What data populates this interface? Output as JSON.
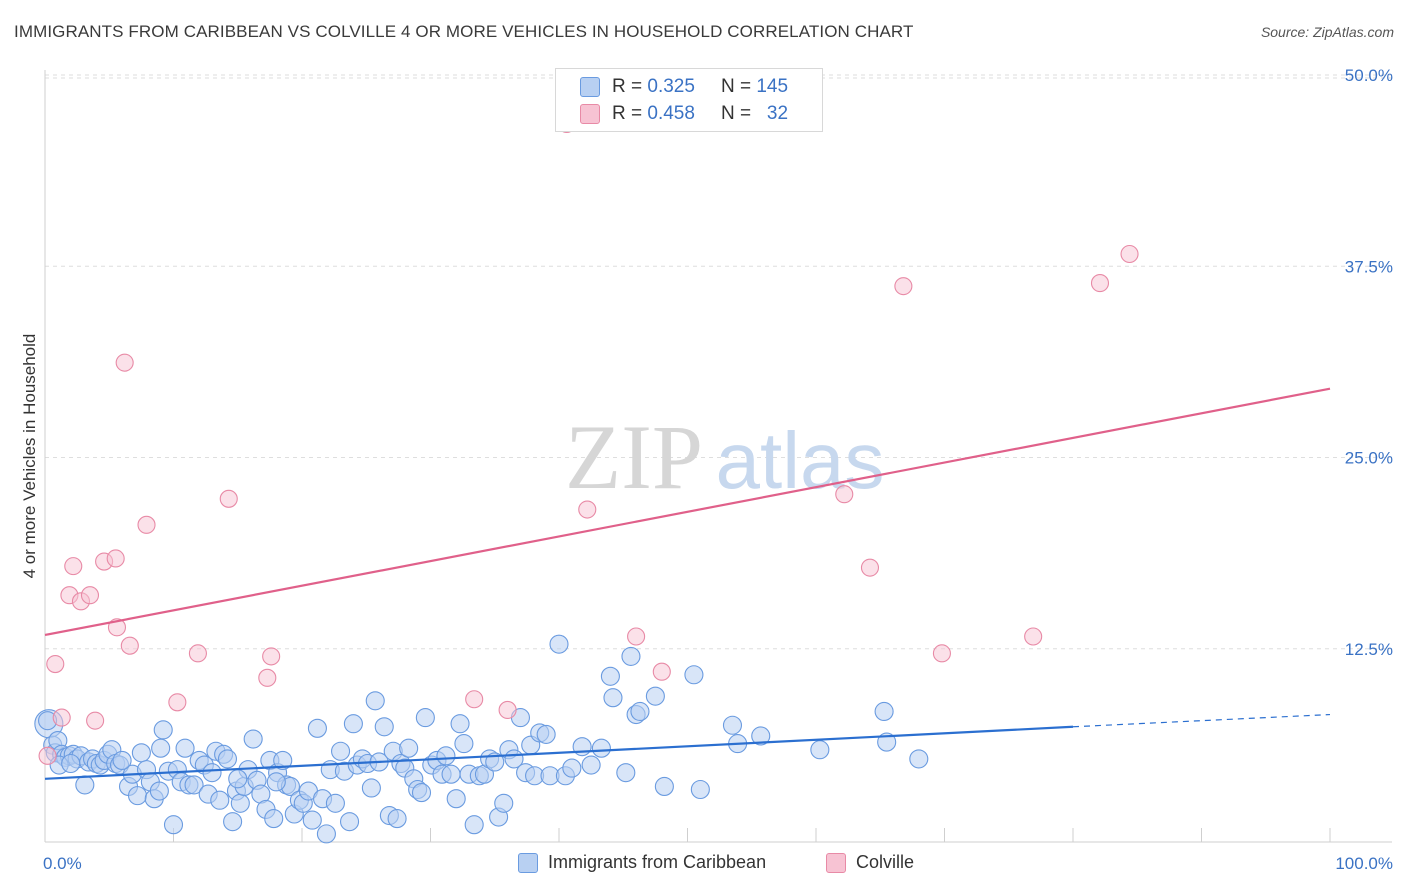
{
  "colors": {
    "blue": "#6a9be0",
    "blue_fill": "#b8d0f2",
    "blue_line": "#2b6fd0",
    "pink": "#e88aa6",
    "pink_fill": "#f7c3d3",
    "pink_line": "#e0608a",
    "tick_text": "#3a72c4"
  },
  "chart_data": {
    "type": "scatter",
    "title": "IMMIGRANTS FROM CARIBBEAN VS COLVILLE 4 OR MORE VEHICLES IN HOUSEHOLD CORRELATION CHART",
    "source": "Source: ZipAtlas.com",
    "ylabel": "4 or more Vehicles in Household",
    "xlabel": "",
    "xlim": [
      0,
      100
    ],
    "ylim": [
      0,
      52
    ],
    "x_tick_labels": [
      "0.0%",
      "100.0%"
    ],
    "y_ticks": [
      {
        "value": 12.5,
        "label": "12.5%"
      },
      {
        "value": 25.0,
        "label": "25.0%"
      },
      {
        "value": 37.5,
        "label": "37.5%"
      },
      {
        "value": 50.0,
        "label": "50.0%"
      }
    ],
    "watermark": {
      "zip": "ZIP",
      "atlas": "atlas"
    },
    "legend": [
      {
        "r_label": "R =",
        "r_value": "0.325",
        "n_label": "N =",
        "n_value": "145"
      },
      {
        "r_label": "R =",
        "r_value": "0.458",
        "n_label": "N =",
        "n_value": "32"
      }
    ],
    "series": [
      {
        "name": "Immigrants from Caribbean",
        "color": "#6a9be0",
        "trend": {
          "x0": 0,
          "y0": 4.0,
          "x1": 80,
          "y1": 7.4,
          "dash_to": 100,
          "y_dash_end": 8.2
        },
        "points": [
          [
            0.3,
            7.6
          ],
          [
            0.6,
            6.2
          ],
          [
            0.8,
            5.7
          ],
          [
            1.0,
            6.5
          ],
          [
            1.3,
            5.6
          ],
          [
            1.6,
            5.4
          ],
          [
            1.9,
            5.5
          ],
          [
            2.2,
            5.6
          ],
          [
            2.5,
            5.3
          ],
          [
            2.8,
            5.5
          ],
          [
            3.1,
            3.6
          ],
          [
            3.4,
            5.1
          ],
          [
            3.7,
            5.3
          ],
          [
            4.0,
            5.0
          ],
          [
            4.3,
            4.9
          ],
          [
            4.6,
            5.2
          ],
          [
            4.9,
            5.6
          ],
          [
            5.2,
            5.9
          ],
          [
            5.5,
            5.0
          ],
          [
            5.8,
            4.9
          ],
          [
            6.5,
            3.5
          ],
          [
            6.8,
            4.3
          ],
          [
            7.2,
            2.9
          ],
          [
            7.5,
            5.7
          ],
          [
            7.9,
            4.6
          ],
          [
            8.2,
            3.8
          ],
          [
            8.5,
            2.7
          ],
          [
            8.9,
            3.2
          ],
          [
            9.2,
            7.2
          ],
          [
            9.6,
            4.5
          ],
          [
            10.0,
            1.0
          ],
          [
            10.3,
            4.6
          ],
          [
            10.6,
            3.8
          ],
          [
            10.9,
            6.0
          ],
          [
            11.2,
            3.6
          ],
          [
            11.6,
            3.6
          ],
          [
            12.0,
            5.2
          ],
          [
            12.4,
            4.9
          ],
          [
            12.7,
            3.0
          ],
          [
            13.0,
            4.4
          ],
          [
            13.3,
            5.8
          ],
          [
            13.6,
            2.6
          ],
          [
            13.9,
            5.6
          ],
          [
            14.2,
            5.3
          ],
          [
            14.6,
            1.2
          ],
          [
            14.9,
            3.2
          ],
          [
            15.2,
            2.4
          ],
          [
            15.5,
            3.5
          ],
          [
            15.8,
            4.6
          ],
          [
            16.2,
            6.6
          ],
          [
            16.5,
            3.9
          ],
          [
            16.8,
            3.0
          ],
          [
            17.2,
            2.0
          ],
          [
            17.5,
            5.2
          ],
          [
            17.8,
            1.4
          ],
          [
            18.1,
            4.4
          ],
          [
            18.5,
            5.2
          ],
          [
            18.8,
            3.6
          ],
          [
            19.1,
            3.5
          ],
          [
            19.4,
            1.7
          ],
          [
            19.8,
            2.6
          ],
          [
            20.1,
            2.4
          ],
          [
            20.5,
            3.2
          ],
          [
            20.8,
            1.3
          ],
          [
            21.2,
            7.3
          ],
          [
            21.6,
            2.7
          ],
          [
            21.9,
            0.4
          ],
          [
            22.2,
            4.6
          ],
          [
            22.6,
            2.4
          ],
          [
            23.0,
            5.8
          ],
          [
            23.3,
            4.5
          ],
          [
            23.7,
            1.2
          ],
          [
            24.0,
            7.6
          ],
          [
            24.3,
            4.9
          ],
          [
            24.7,
            5.3
          ],
          [
            25.1,
            5.0
          ],
          [
            25.4,
            3.4
          ],
          [
            25.7,
            9.1
          ],
          [
            26.0,
            5.1
          ],
          [
            26.4,
            7.4
          ],
          [
            26.8,
            1.6
          ],
          [
            27.1,
            5.8
          ],
          [
            27.4,
            1.4
          ],
          [
            27.7,
            5.0
          ],
          [
            28.0,
            4.7
          ],
          [
            28.3,
            6.0
          ],
          [
            28.7,
            4.0
          ],
          [
            29.0,
            3.3
          ],
          [
            29.3,
            3.1
          ],
          [
            29.6,
            8.0
          ],
          [
            30.1,
            4.9
          ],
          [
            30.5,
            5.2
          ],
          [
            30.9,
            4.3
          ],
          [
            31.2,
            5.5
          ],
          [
            31.6,
            4.3
          ],
          [
            32.0,
            2.7
          ],
          [
            32.3,
            7.6
          ],
          [
            32.6,
            6.3
          ],
          [
            33.0,
            4.3
          ],
          [
            33.4,
            1.0
          ],
          [
            33.8,
            4.2
          ],
          [
            34.2,
            4.3
          ],
          [
            34.6,
            5.3
          ],
          [
            35.0,
            5.1
          ],
          [
            35.3,
            1.5
          ],
          [
            35.7,
            2.4
          ],
          [
            36.1,
            5.9
          ],
          [
            36.5,
            5.3
          ],
          [
            37.0,
            8.0
          ],
          [
            37.4,
            4.4
          ],
          [
            37.8,
            6.2
          ],
          [
            38.1,
            4.2
          ],
          [
            38.5,
            7.0
          ],
          [
            39.0,
            6.9
          ],
          [
            39.3,
            4.2
          ],
          [
            40.0,
            12.8
          ],
          [
            40.5,
            4.2
          ],
          [
            41.0,
            4.7
          ],
          [
            41.8,
            6.1
          ],
          [
            42.5,
            4.9
          ],
          [
            43.3,
            6.0
          ],
          [
            44.0,
            10.7
          ],
          [
            44.2,
            9.3
          ],
          [
            45.2,
            4.4
          ],
          [
            45.6,
            12.0
          ],
          [
            46.0,
            8.2
          ],
          [
            46.3,
            8.4
          ],
          [
            47.5,
            9.4
          ],
          [
            48.2,
            3.5
          ],
          [
            50.5,
            10.8
          ],
          [
            51.0,
            3.3
          ],
          [
            53.5,
            7.5
          ],
          [
            53.9,
            6.3
          ],
          [
            55.7,
            6.8
          ],
          [
            60.3,
            5.9
          ],
          [
            65.3,
            8.4
          ],
          [
            65.5,
            6.4
          ],
          [
            68.0,
            5.3
          ],
          [
            0.2,
            7.8
          ],
          [
            1.1,
            4.9
          ],
          [
            2.0,
            5.0
          ],
          [
            6.0,
            5.2
          ],
          [
            9.0,
            6.0
          ],
          [
            15.0,
            4.0
          ],
          [
            18.0,
            3.8
          ]
        ]
      },
      {
        "name": "Colville",
        "color": "#e88aa6",
        "trend": {
          "x0": 0,
          "y0": 13.4,
          "x1": 100,
          "y1": 29.5
        },
        "points": [
          [
            0.2,
            5.5
          ],
          [
            0.8,
            11.5
          ],
          [
            1.3,
            8.0
          ],
          [
            1.9,
            16.0
          ],
          [
            2.2,
            17.9
          ],
          [
            2.8,
            15.6
          ],
          [
            3.5,
            16.0
          ],
          [
            3.9,
            7.8
          ],
          [
            4.6,
            18.2
          ],
          [
            5.5,
            18.4
          ],
          [
            5.6,
            13.9
          ],
          [
            6.2,
            31.2
          ],
          [
            6.6,
            12.7
          ],
          [
            7.9,
            20.6
          ],
          [
            10.3,
            9.0
          ],
          [
            11.9,
            12.2
          ],
          [
            14.3,
            22.3
          ],
          [
            17.3,
            10.6
          ],
          [
            17.6,
            12.0
          ],
          [
            33.4,
            9.2
          ],
          [
            36.0,
            8.5
          ],
          [
            40.6,
            46.8
          ],
          [
            42.2,
            21.6
          ],
          [
            46.0,
            13.3
          ],
          [
            48.0,
            11.0
          ],
          [
            62.2,
            22.6
          ],
          [
            64.2,
            17.8
          ],
          [
            66.8,
            36.2
          ],
          [
            69.8,
            12.2
          ],
          [
            76.9,
            13.3
          ],
          [
            82.1,
            36.4
          ],
          [
            84.4,
            38.3
          ]
        ]
      }
    ]
  },
  "bottom_legend": [
    "Immigrants from Caribbean",
    "Colville"
  ]
}
